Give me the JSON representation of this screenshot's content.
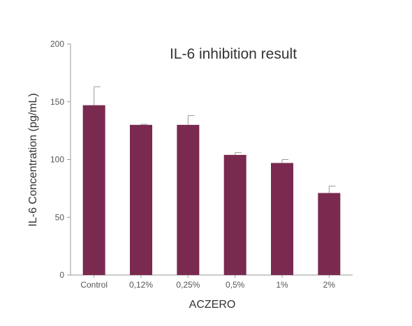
{
  "chart_data": {
    "type": "bar",
    "title": "IL-6 inhibition result",
    "xlabel": "ACZERO",
    "ylabel": "IL-6 Concentration (pg/mL)",
    "categories": [
      "Control",
      "0,12%",
      "0,25%",
      "0,5%",
      "1%",
      "2%"
    ],
    "values": [
      147,
      130,
      130,
      104,
      97,
      71
    ],
    "error_upper": [
      163,
      130.5,
      138,
      106,
      100,
      77
    ],
    "ylim": [
      0,
      200
    ],
    "yticks": [
      "0",
      "50",
      "100",
      "150",
      "200"
    ],
    "ytick_values": [
      0,
      50,
      100,
      150,
      200
    ],
    "grid": false,
    "bar_color": "#7a2a4f",
    "axis_color": "#999999"
  }
}
